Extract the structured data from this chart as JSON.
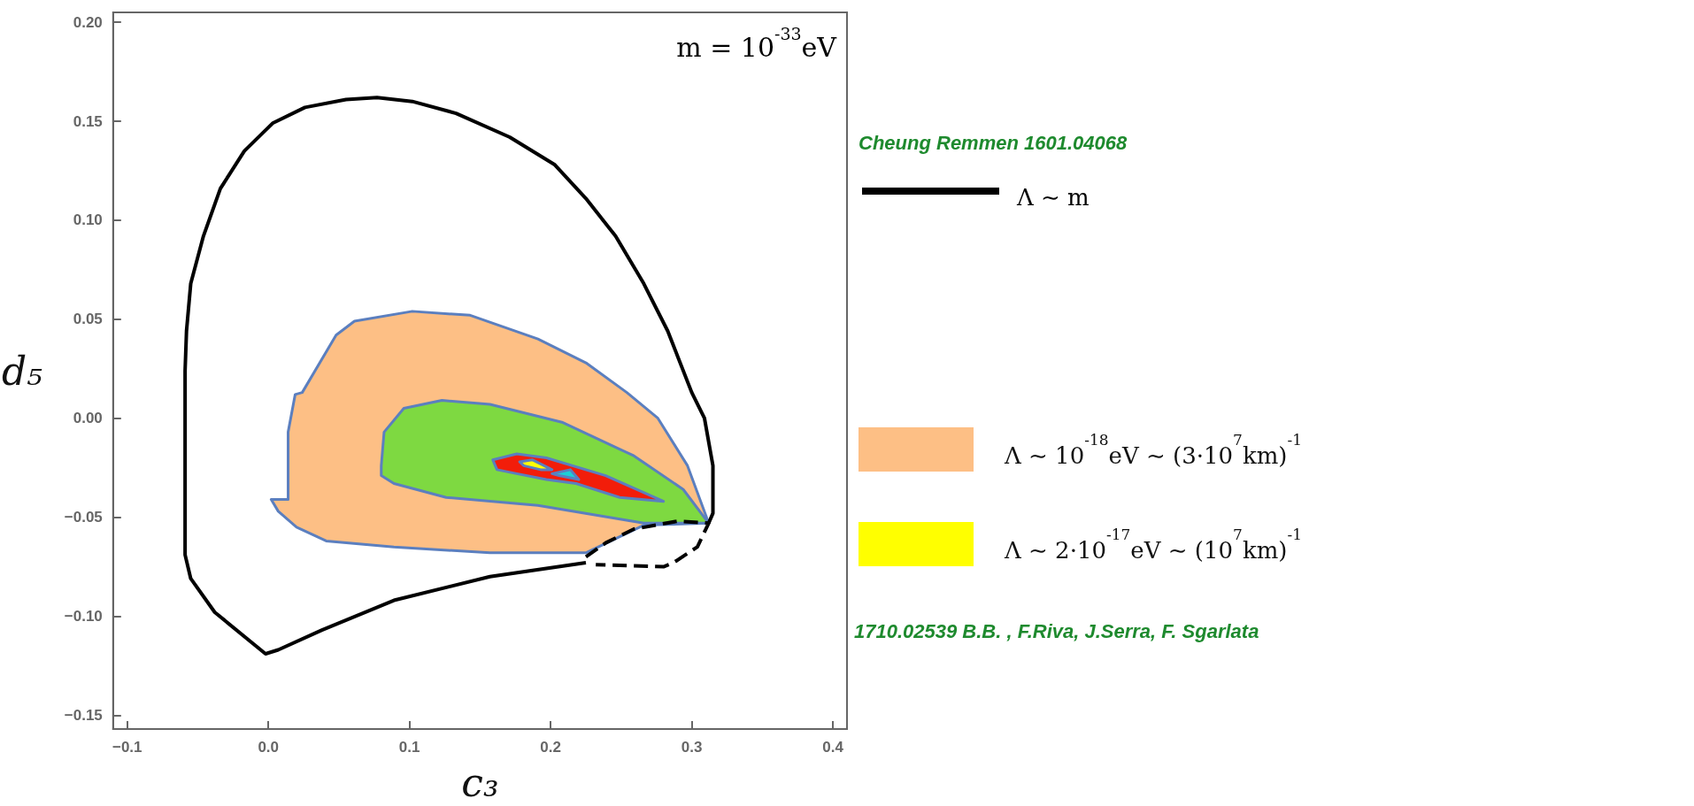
{
  "chart_data": {
    "type": "line",
    "xlabel": "c₃",
    "ylabel": "d₅",
    "xlim": [
      -0.11,
      0.41
    ],
    "ylim": [
      -0.157,
      0.205
    ],
    "xticks": [
      {
        "value": -0.1,
        "label": "−0.1"
      },
      {
        "value": 0,
        "label": "0.0"
      },
      0.1,
      0.2,
      0.3,
      0.4
    ],
    "yticks": [
      {
        "value": -0.15,
        "label": "−0.15"
      },
      {
        "value": -0.1,
        "label": "−0.10"
      },
      {
        "value": -0.05,
        "label": "−0.05"
      },
      {
        "value": 0,
        "label": "0.00"
      },
      0.05,
      {
        "value": 0.1,
        "label": "0.10"
      },
      0.15,
      {
        "value": 0.2,
        "label": "0.20"
      }
    ],
    "grid": false,
    "legend": "right",
    "marker": "none",
    "annotations": [
      "m = 10$^{-33}$eV",
      "Cheung Remmen 1601.04068",
      "1710.02539 B.B. , F.Riva, J.Serra, F. Sgarlata"
    ],
    "series": [
      {
        "name": "Λ ∼ 10$^{-18}$eV ∼ (3·10$^{7}$km)$^{-1}$",
        "type": "area",
        "color": "#fdbf85",
        "x": [
          0.024,
          0.048,
          0.061,
          0.102,
          0.143,
          0.191,
          0.225,
          0.254,
          0.276,
          0.297,
          0.312,
          0.266,
          0.225,
          0.157,
          0.089,
          0.041,
          0.02,
          0.007,
          0.002,
          0.014,
          0.014,
          0.019
        ],
        "values": [
          0.013,
          0.042,
          0.049,
          0.054,
          0.052,
          0.04,
          0.028,
          0.013,
          0.0,
          -0.024,
          -0.053,
          -0.054,
          -0.068,
          -0.068,
          -0.065,
          -0.062,
          -0.055,
          -0.047,
          -0.041,
          -0.041,
          -0.007,
          0.012
        ]
      },
      {
        "type": "area",
        "color": "#7ed941",
        "x": [
          0.08,
          0.082,
          0.096,
          0.123,
          0.157,
          0.208,
          0.259,
          0.294,
          0.312,
          0.266,
          0.191,
          0.126,
          0.089,
          0.08
        ],
        "values": [
          -0.024,
          -0.007,
          0.005,
          0.009,
          0.007,
          -0.002,
          -0.019,
          -0.036,
          -0.053,
          -0.053,
          -0.044,
          -0.04,
          -0.033,
          -0.029
        ]
      },
      {
        "type": "area",
        "color": "#f21d0a",
        "x": [
          0.159,
          0.176,
          0.197,
          0.239,
          0.28,
          0.249,
          0.218,
          0.197,
          0.176,
          0.162
        ],
        "values": [
          -0.021,
          -0.018,
          -0.02,
          -0.029,
          -0.042,
          -0.04,
          -0.033,
          -0.031,
          -0.028,
          -0.026
        ]
      },
      {
        "name": "Λ ∼ 2·10$^{-17}$eV ∼ (10$^{7}$km)$^{-1}$",
        "type": "area",
        "color": "#ffff00",
        "x": [
          0.178,
          0.187,
          0.201,
          0.193,
          0.181
        ],
        "values": [
          -0.022,
          -0.021,
          -0.026,
          -0.026,
          -0.024
        ]
      },
      {
        "type": "area",
        "color": "#1ccfd6",
        "x": [
          0.201,
          0.214,
          0.22,
          0.206
        ],
        "values": [
          -0.028,
          -0.026,
          -0.031,
          -0.029
        ]
      },
      {
        "name": "Λ ∼ m",
        "color": "#000000",
        "line_style": "solid",
        "x": [
          0.225,
          0.157,
          0.089,
          0.038,
          0.007,
          -0.002,
          -0.038,
          -0.055,
          -0.059,
          -0.059,
          -0.058,
          -0.055,
          -0.046,
          -0.034,
          -0.017,
          0.003,
          0.026,
          0.055,
          0.077,
          0.102,
          0.133,
          0.171,
          0.203,
          0.225,
          0.246,
          0.266,
          0.283,
          0.3,
          0.309,
          0.315,
          0.315,
          0.312
        ],
        "values": [
          -0.073,
          -0.08,
          -0.092,
          -0.107,
          -0.117,
          -0.119,
          -0.098,
          -0.081,
          -0.069,
          0.024,
          0.044,
          0.068,
          0.092,
          0.116,
          0.135,
          0.149,
          0.157,
          0.161,
          0.162,
          0.16,
          0.154,
          0.142,
          0.128,
          0.111,
          0.092,
          0.068,
          0.044,
          0.013,
          0.0,
          -0.024,
          -0.048,
          -0.053
        ]
      },
      {
        "color": "#000000",
        "line_style": "dashed",
        "x": [
          0.225,
          0.239,
          0.259,
          0.29,
          0.312,
          0.304,
          0.287,
          0.28,
          0.232
        ],
        "values": [
          -0.07,
          -0.063,
          -0.056,
          -0.052,
          -0.053,
          -0.065,
          -0.073,
          -0.075,
          -0.074
        ]
      }
    ]
  }
}
